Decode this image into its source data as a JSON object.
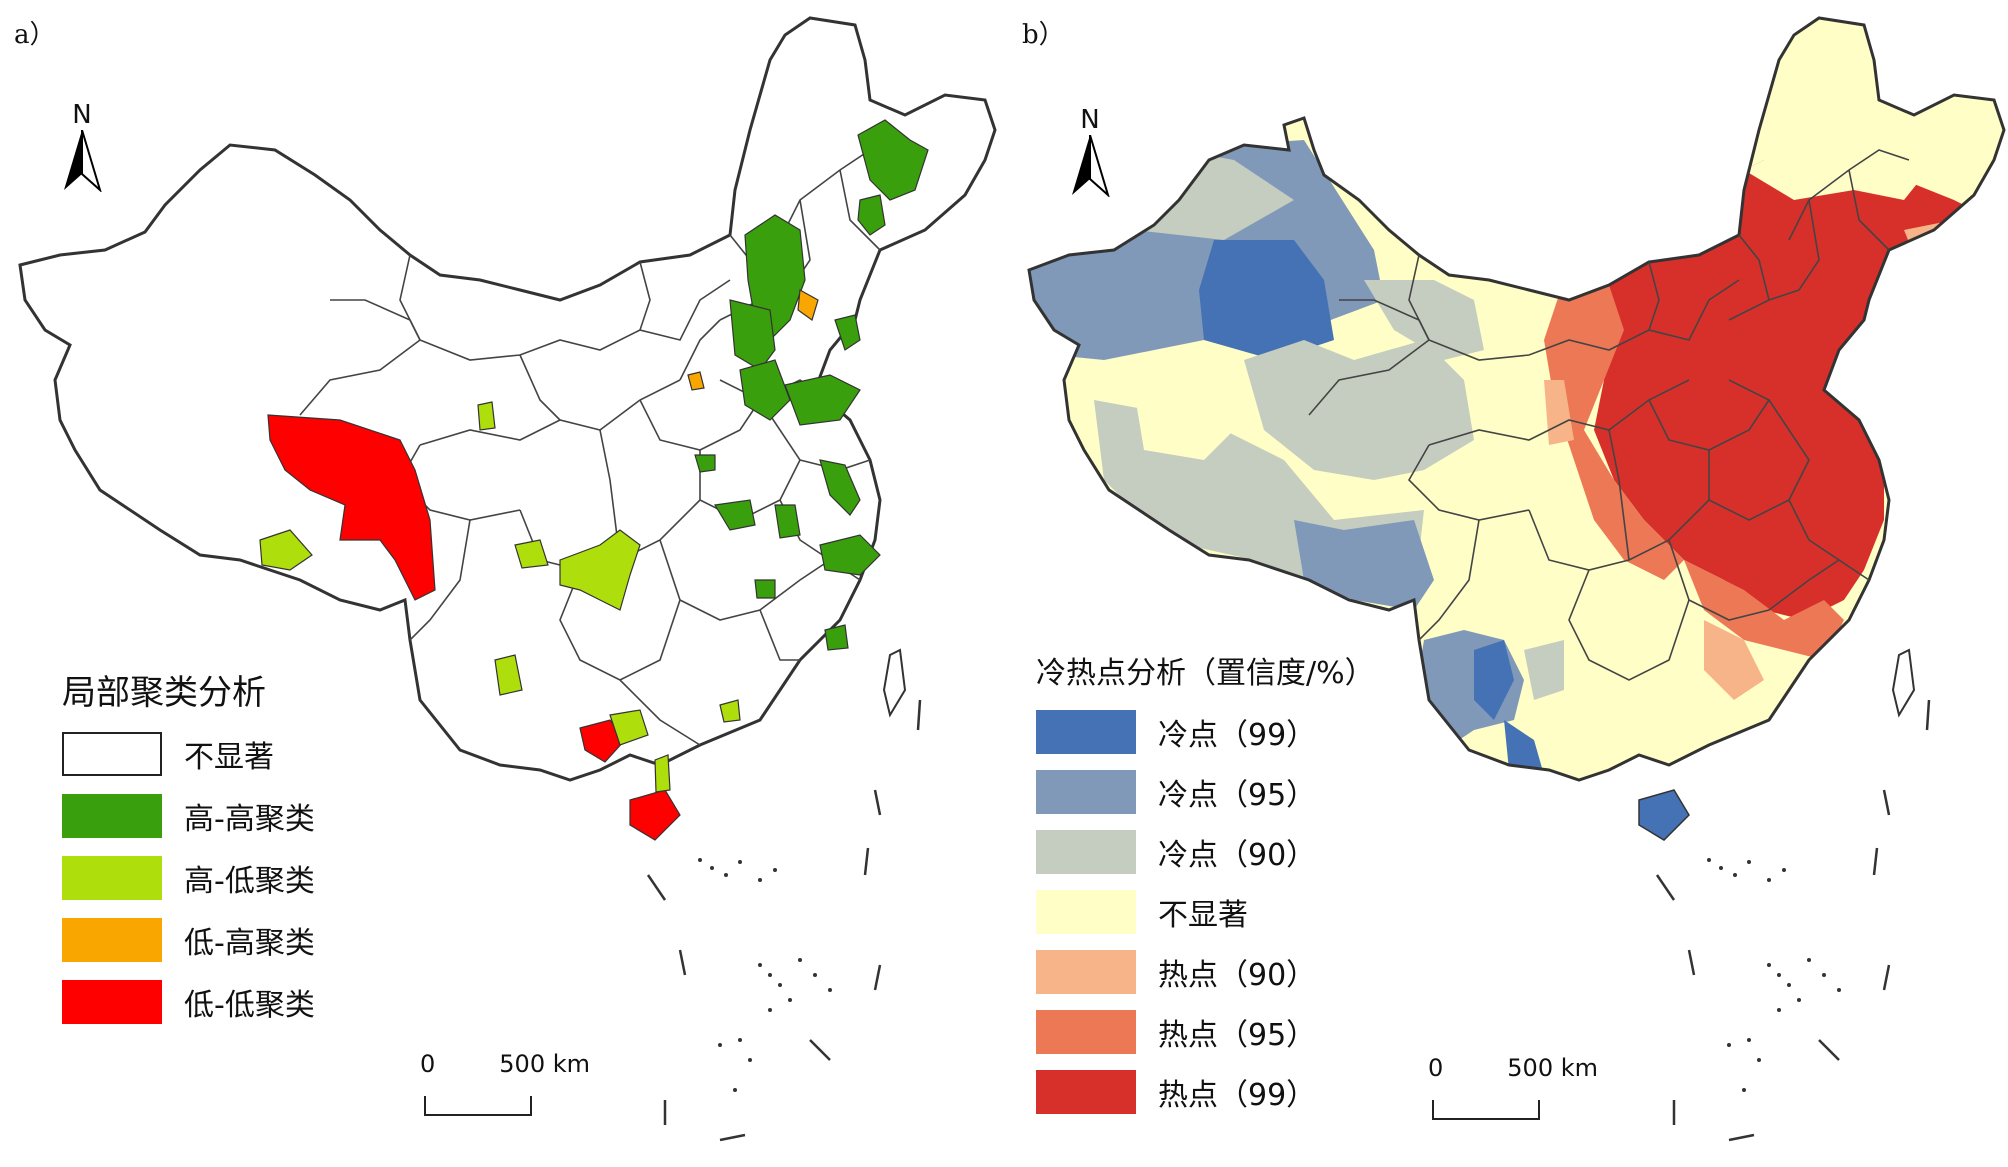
{
  "panels": [
    {
      "label": "a）",
      "north": "N",
      "legend_title": "局部聚类分析",
      "legend": [
        {
          "label": "不显著",
          "color": "#ffffff"
        },
        {
          "label": "高-高聚类",
          "color": "#3a9f0c"
        },
        {
          "label": "高-低聚类",
          "color": "#aede0b"
        },
        {
          "label": "低-高聚类",
          "color": "#f9a600"
        },
        {
          "label": "低-低聚类",
          "color": "#ff0000"
        }
      ],
      "scale": {
        "start": "0",
        "end": "500 km"
      }
    },
    {
      "label": "b）",
      "north": "N",
      "legend_title": "冷热点分析（置信度/%）",
      "legend": [
        {
          "label": "冷点（99）",
          "color": "#4472b5"
        },
        {
          "label": "冷点（95）",
          "color": "#8099b8"
        },
        {
          "label": "冷点（90）",
          "color": "#c5cdc0"
        },
        {
          "label": "不显著",
          "color": "#fefec6"
        },
        {
          "label": "热点（90）",
          "color": "#f7b488"
        },
        {
          "label": "热点（95）",
          "color": "#ec7856"
        },
        {
          "label": "热点（99）",
          "color": "#d7302b"
        }
      ],
      "scale": {
        "start": "0",
        "end": "500 km"
      }
    }
  ]
}
